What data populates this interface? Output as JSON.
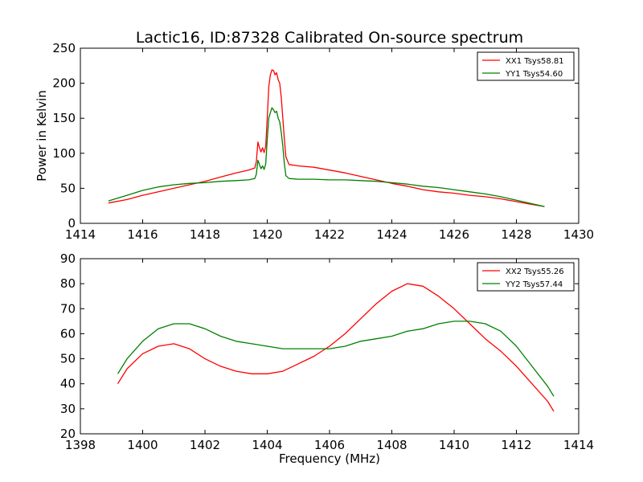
{
  "figure": {
    "title": "Lactic16, ID:87328 Calibrated On-source spectrum"
  },
  "chart_data": [
    {
      "type": "line",
      "title": "Lactic16, ID:87328 Calibrated On-source spectrum",
      "xlabel": "",
      "ylabel": "Power in Kelvin",
      "xlim": [
        1414,
        1430
      ],
      "ylim": [
        0,
        250
      ],
      "xticks": [
        "1414",
        "1416",
        "1418",
        "1420",
        "1422",
        "1424",
        "1426",
        "1428",
        "1430"
      ],
      "yticks": [
        "0",
        "50",
        "100",
        "150",
        "200",
        "250"
      ],
      "grid": false,
      "legend_position": "top-right",
      "series": [
        {
          "name": "XX1 Tsys58.81",
          "color": "#ff0000",
          "x": [
            1414.9,
            1415.5,
            1416.0,
            1416.5,
            1417.0,
            1417.5,
            1418.0,
            1418.5,
            1419.0,
            1419.4,
            1419.6,
            1419.65,
            1419.7,
            1419.75,
            1419.8,
            1419.85,
            1419.9,
            1419.95,
            1420.0,
            1420.05,
            1420.1,
            1420.15,
            1420.2,
            1420.25,
            1420.3,
            1420.35,
            1420.4,
            1420.45,
            1420.5,
            1420.55,
            1420.6,
            1420.7,
            1421.0,
            1421.5,
            1422.0,
            1422.5,
            1423.0,
            1423.5,
            1424.0,
            1424.5,
            1425.0,
            1425.5,
            1426.0,
            1426.5,
            1427.0,
            1427.5,
            1428.0,
            1428.5,
            1428.9
          ],
          "y": [
            29,
            34,
            40,
            45,
            50,
            55,
            60,
            66,
            72,
            76,
            79,
            88,
            116,
            108,
            102,
            108,
            101,
            110,
            150,
            195,
            212,
            219,
            218,
            212,
            215,
            205,
            200,
            180,
            150,
            120,
            95,
            84,
            82,
            80,
            76,
            72,
            67,
            62,
            57,
            53,
            48,
            45,
            43,
            40,
            38,
            35,
            31,
            27,
            24
          ]
        },
        {
          "name": "YY1 Tsys54.60",
          "color": "#008000",
          "x": [
            1414.9,
            1415.5,
            1416.0,
            1416.5,
            1417.0,
            1417.5,
            1418.0,
            1418.5,
            1419.0,
            1419.4,
            1419.6,
            1419.65,
            1419.7,
            1419.75,
            1419.8,
            1419.85,
            1419.9,
            1419.95,
            1420.0,
            1420.05,
            1420.1,
            1420.15,
            1420.2,
            1420.25,
            1420.3,
            1420.35,
            1420.4,
            1420.45,
            1420.5,
            1420.55,
            1420.6,
            1420.7,
            1421.0,
            1421.5,
            1422.0,
            1422.5,
            1423.0,
            1423.5,
            1424.0,
            1424.5,
            1425.0,
            1425.5,
            1426.0,
            1426.5,
            1427.0,
            1427.5,
            1428.0,
            1428.5,
            1428.9
          ],
          "y": [
            32,
            40,
            47,
            52,
            55,
            57,
            58,
            60,
            61,
            62,
            64,
            70,
            90,
            84,
            78,
            82,
            77,
            85,
            120,
            150,
            158,
            165,
            162,
            158,
            160,
            150,
            145,
            130,
            110,
            85,
            68,
            64,
            63,
            63,
            62,
            62,
            61,
            60,
            58,
            56,
            53,
            51,
            48,
            45,
            42,
            38,
            33,
            28,
            24
          ]
        }
      ]
    },
    {
      "type": "line",
      "title": "",
      "xlabel": "Frequency (MHz)",
      "ylabel": "",
      "xlim": [
        1398,
        1414
      ],
      "ylim": [
        20,
        90
      ],
      "xticks": [
        "1398",
        "1400",
        "1402",
        "1404",
        "1406",
        "1408",
        "1410",
        "1412",
        "1414"
      ],
      "yticks": [
        "20",
        "30",
        "40",
        "50",
        "60",
        "70",
        "80",
        "90"
      ],
      "grid": false,
      "legend_position": "top-right",
      "series": [
        {
          "name": "XX2 Tsys55.26",
          "color": "#ff0000",
          "x": [
            1399.2,
            1399.5,
            1400.0,
            1400.5,
            1401.0,
            1401.5,
            1402.0,
            1402.5,
            1403.0,
            1403.5,
            1404.0,
            1404.5,
            1405.0,
            1405.5,
            1406.0,
            1406.5,
            1407.0,
            1407.5,
            1408.0,
            1408.5,
            1409.0,
            1409.5,
            1410.0,
            1410.5,
            1411.0,
            1411.5,
            1412.0,
            1412.5,
            1413.0,
            1413.2
          ],
          "y": [
            40,
            46,
            52,
            55,
            56,
            54,
            50,
            47,
            45,
            44,
            44,
            45,
            48,
            51,
            55,
            60,
            66,
            72,
            77,
            80,
            79,
            75,
            70,
            64,
            58,
            53,
            47,
            40,
            33,
            29
          ]
        },
        {
          "name": "YY2 Tsys57.44",
          "color": "#008000",
          "x": [
            1399.2,
            1399.5,
            1400.0,
            1400.5,
            1401.0,
            1401.5,
            1402.0,
            1402.5,
            1403.0,
            1403.5,
            1404.0,
            1404.5,
            1405.0,
            1405.5,
            1406.0,
            1406.5,
            1407.0,
            1407.5,
            1408.0,
            1408.5,
            1409.0,
            1409.5,
            1410.0,
            1410.5,
            1411.0,
            1411.5,
            1412.0,
            1412.5,
            1413.0,
            1413.2
          ],
          "y": [
            44,
            50,
            57,
            62,
            64,
            64,
            62,
            59,
            57,
            56,
            55,
            54,
            54,
            54,
            54,
            55,
            57,
            58,
            59,
            61,
            62,
            64,
            65,
            65,
            64,
            61,
            55,
            47,
            39,
            35
          ]
        }
      ]
    }
  ]
}
